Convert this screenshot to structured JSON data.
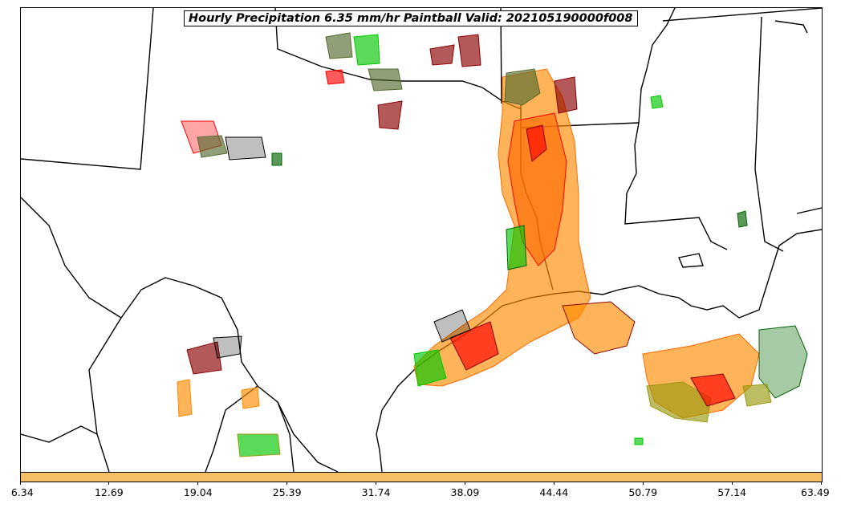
{
  "title": "Hourly Precipitation 6.35 mm/hr Paintball Valid: 202105190000f008",
  "colorbar": {
    "fill_color": "#f7bf65",
    "ticks": [
      "6.34",
      "12.69",
      "19.04",
      "25.39",
      "31.74",
      "38.09",
      "44.44",
      "50.79",
      "57.14",
      "63.49"
    ]
  },
  "colors": {
    "member_1": "#000000",
    "member_2": "#8b0000",
    "member_3": "#ff0000",
    "member_4": "#00c800",
    "member_5": "#006400",
    "member_6": "#9a9a10",
    "member_7": "#556b2f",
    "member_8": "#ff8c00",
    "member_9": "#f4a460",
    "member_10": "#ff6a00"
  }
}
